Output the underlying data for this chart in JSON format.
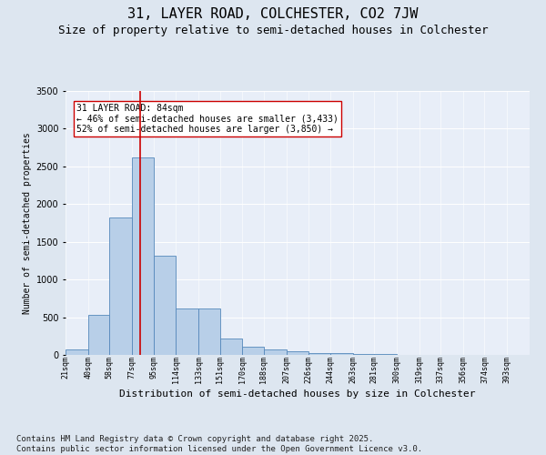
{
  "title": "31, LAYER ROAD, COLCHESTER, CO2 7JW",
  "subtitle": "Size of property relative to semi-detached houses in Colchester",
  "xlabel": "Distribution of semi-detached houses by size in Colchester",
  "ylabel": "Number of semi-detached properties",
  "bin_labels": [
    "21sqm",
    "40sqm",
    "58sqm",
    "77sqm",
    "95sqm",
    "114sqm",
    "133sqm",
    "151sqm",
    "170sqm",
    "188sqm",
    "207sqm",
    "226sqm",
    "244sqm",
    "263sqm",
    "281sqm",
    "300sqm",
    "319sqm",
    "337sqm",
    "356sqm",
    "374sqm",
    "393sqm"
  ],
  "bin_edges_start": [
    21,
    40,
    58,
    77,
    95,
    114,
    133,
    151,
    170,
    188,
    207,
    226,
    244,
    263,
    281,
    300,
    319,
    337,
    356,
    374,
    393
  ],
  "bar_heights": [
    70,
    530,
    1820,
    2620,
    1310,
    620,
    620,
    220,
    110,
    75,
    50,
    30,
    20,
    15,
    10,
    5,
    3,
    2,
    1,
    1,
    1
  ],
  "bar_color": "#b8cfe8",
  "bar_edge_color": "#5588bb",
  "property_size": 84,
  "vline_color": "#cc0000",
  "annotation_text": "31 LAYER ROAD: 84sqm\n← 46% of semi-detached houses are smaller (3,433)\n52% of semi-detached houses are larger (3,850) →",
  "annotation_box_color": "#ffffff",
  "annotation_box_edge_color": "#cc0000",
  "ylim": [
    0,
    3500
  ],
  "background_color": "#dde6f0",
  "plot_bg_color": "#e8eef8",
  "footer_line1": "Contains HM Land Registry data © Crown copyright and database right 2025.",
  "footer_line2": "Contains public sector information licensed under the Open Government Licence v3.0.",
  "title_fontsize": 11,
  "subtitle_fontsize": 9,
  "annotation_fontsize": 7,
  "ylabel_fontsize": 7,
  "xlabel_fontsize": 8,
  "footer_fontsize": 6.5,
  "ytick_fontsize": 7,
  "xtick_fontsize": 6
}
